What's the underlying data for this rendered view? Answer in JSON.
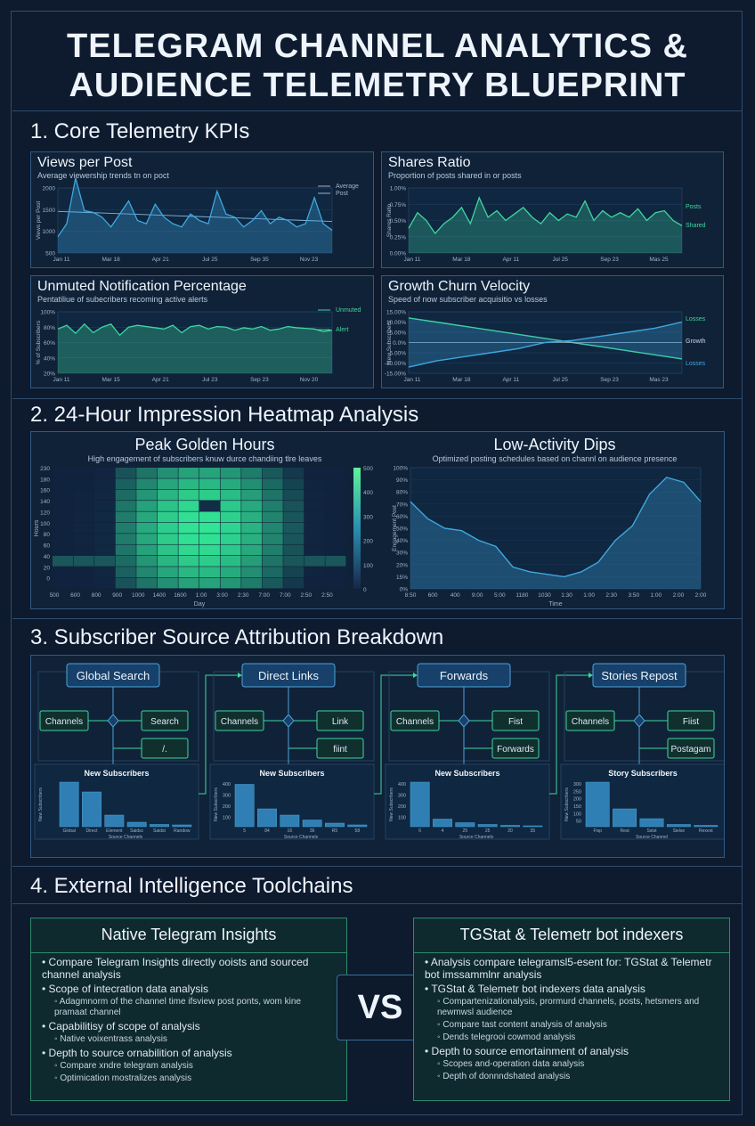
{
  "title": [
    "TELEGRAM CHANNEL ANALYTICS &",
    "AUDIENCE TELEMETRY BLUEPRINT"
  ],
  "sections": {
    "s1": "1. Core Telemetry KPIs",
    "s2": "2. 24-Hour Impression Heatmap Analysis",
    "s3": "3. Subscriber Source Attribution Breakdown",
    "s4": "4. External Intelligence Toolchains"
  },
  "kpis": {
    "views": {
      "title": "Views per Post",
      "subtitle": "Average viewership trends tn on poct",
      "legend": [
        "Average",
        "Post"
      ]
    },
    "shares": {
      "title": "Shares Ratio",
      "subtitle": "Proportion of posts shared in or posts",
      "legend": [
        "Posts",
        "Shared"
      ]
    },
    "unmuted": {
      "title": "Unmuted Notification Percentage",
      "subtitle": "Pentatiliue of subecribers recoming active alerts",
      "legend": [
        "Unmuted",
        "Alert"
      ]
    },
    "churn": {
      "title": "Growth Churn Velocity",
      "subtitle": "Speed of now subscriber acquisitio vs losses",
      "legend": [
        "Losses",
        "Growth",
        "Losses"
      ]
    }
  },
  "heatmap": {
    "peak_title": "Peak Golden Hours",
    "peak_sub": "High engagement of subscribers knuw durce chandiing tlre leaves",
    "peak_xlabel": "Day",
    "peak_ylabel": "Hours",
    "low_title": "Low-Activity Dips",
    "low_sub": "Optimized posting schedules based on channl on audience presence",
    "low_xlabel": "Time",
    "low_ylabel": "Engagement Post"
  },
  "attribution": [
    {
      "header": "Global Search",
      "left": "Channels",
      "right1": "Search",
      "right2": "/.",
      "chart_title": "New Subscribers",
      "xlabel": "Source Channels",
      "ylabel": "New Subscribers",
      "cats": [
        "Global",
        "Direct",
        "Element",
        "Saidsc",
        "Saidst",
        "Randow"
      ],
      "vals": [
        100,
        78,
        26,
        10,
        5,
        4
      ],
      "yticks": []
    },
    {
      "header": "Direct Links",
      "left": "Channels",
      "right1": "Link",
      "right2": "fiint",
      "chart_title": "New Subscribers",
      "xlabel": "Source Channels",
      "ylabel": "New Subscribers",
      "cats": [
        "5",
        "84",
        "16",
        "36",
        "R5",
        "58"
      ],
      "vals": [
        95,
        40,
        26,
        15,
        8,
        4
      ],
      "yticks": [
        "400",
        "300",
        "200",
        "100"
      ]
    },
    {
      "header": "Forwards",
      "left": "Channels",
      "right1": "Fist",
      "right2": "Forwards",
      "chart_title": "New Subscribers",
      "xlabel": "Source Channels",
      "ylabel": "New Subscribers",
      "cats": [
        "6",
        "4",
        "25",
        "25",
        "20",
        "35"
      ],
      "vals": [
        100,
        17,
        9,
        5,
        3,
        2
      ],
      "yticks": [
        "400",
        "300",
        "200",
        "100"
      ]
    },
    {
      "header": "Stories Repost",
      "left": "Channels",
      "right1": "Fiist",
      "right2": "Postagam",
      "chart_title": "Story Subscribers",
      "xlabel": "Source Channel",
      "ylabel": "New Subscribers",
      "cats": [
        "Fisp",
        "Rest",
        "Sstst",
        "Sielse",
        "Rexest"
      ],
      "vals": [
        100,
        40,
        18,
        5,
        3
      ],
      "yticks": [
        "300",
        "250",
        "200",
        "150",
        "100",
        "50"
      ]
    }
  ],
  "tools": {
    "left": {
      "title": "Native Telegram Insights",
      "items": [
        {
          "text": "Compare Telegram Insights directly ooists and sourced channel analysis",
          "sub": false
        },
        {
          "text": "Scope of intecration data analysis",
          "sub": false
        },
        {
          "text": "Adagmnorm of the channel time ifsview post ponts, wom kine pramaat channel",
          "sub": true
        },
        {
          "text": "Capabilitisy of scope of analysis",
          "sub": false
        },
        {
          "text": "Native voixentrass analysis",
          "sub": true
        },
        {
          "text": "Depth to source ornabilition of analysis",
          "sub": false
        },
        {
          "text": "Compare xndre telegram analysis",
          "sub": true
        },
        {
          "text": "Optimication mostralizes analysis",
          "sub": true
        }
      ]
    },
    "vs": "VS",
    "right": {
      "title": "TGStat & Telemetr bot indexers",
      "items": [
        {
          "text": "Analysis compare telegramsl5-esent for: TGStat & Telemetr bot imssammlnr analysis",
          "sub": false
        },
        {
          "text": "TGStat & Telemetr bot indexers data analysis",
          "sub": false
        },
        {
          "text": "Compartenizationalysis, prormurd channels, posts, hetsmers and newmwsl audience",
          "sub": true
        },
        {
          "text": "Compare tast content analysis of analysis",
          "sub": true
        },
        {
          "text": "Dends telegrooi cowmod analysis",
          "sub": true
        },
        {
          "text": "Depth to source emortainment of analysis",
          "sub": false
        },
        {
          "text": "Scopes and-operation data analysis",
          "sub": true
        },
        {
          "text": "Depth of donnndshated analysis",
          "sub": true
        }
      ]
    }
  },
  "chart_data": [
    {
      "type": "line",
      "title": "Views per Post",
      "ylabel": "Views per Post",
      "ylim": [
        0,
        2000
      ],
      "yticks": [
        "2000",
        "1500",
        "1000",
        "500"
      ],
      "xticks": [
        "Jan 11",
        "Mar 18",
        "Apr 21",
        "Jul 25",
        "Sep 35",
        "Nov 23"
      ],
      "series": [
        {
          "name": "Average",
          "values": [
            1280,
            1270,
            1260,
            1250,
            1240,
            1230,
            1220,
            1210,
            1200,
            1190,
            1180,
            1170,
            1160,
            1150,
            1140,
            1130,
            1120,
            1110,
            1100,
            1090,
            1080,
            1070,
            1060,
            1050,
            1040,
            1030,
            1020,
            1010,
            1000,
            990,
            980,
            970
          ]
        },
        {
          "name": "Post",
          "values": [
            500,
            900,
            2300,
            1300,
            1250,
            1100,
            800,
            1200,
            1600,
            1000,
            900,
            1500,
            1100,
            900,
            800,
            1200,
            1000,
            900,
            1900,
            1200,
            1100,
            800,
            1000,
            1300,
            900,
            1100,
            1000,
            800,
            900,
            1700,
            900,
            700
          ]
        }
      ]
    },
    {
      "type": "line",
      "title": "Shares Ratio",
      "ylabel": "Shares Ratio",
      "ylim": [
        0,
        1
      ],
      "yticks": [
        "1.00%",
        "0.75%",
        "0.50%",
        "0.25%",
        "0.00%"
      ],
      "xticks": [
        "Jan 11",
        "Mar 18",
        "Apr 11",
        "Jul 25",
        "Sep 23",
        "Mas 25"
      ],
      "series": [
        {
          "name": "Posts",
          "values": [
            0.38,
            0.62,
            0.5,
            0.3,
            0.45,
            0.55,
            0.7,
            0.45,
            0.85,
            0.55,
            0.65,
            0.5,
            0.6,
            0.7,
            0.55,
            0.45,
            0.62,
            0.5,
            0.6,
            0.55,
            0.8,
            0.5,
            0.65,
            0.55,
            0.62,
            0.55,
            0.68,
            0.5,
            0.62,
            0.65,
            0.5,
            0.42
          ]
        },
        {
          "name": "Shared",
          "values": []
        }
      ]
    },
    {
      "type": "area",
      "title": "Unmuted Notification Percentage",
      "ylabel": "% of Subscribers",
      "ylim": [
        0,
        100
      ],
      "yticks": [
        "100%",
        "80%",
        "60%",
        "40%",
        "20%"
      ],
      "xticks": [
        "Jan 11",
        "Mar 15",
        "Apr 21",
        "Jul 23",
        "Sep 23",
        "Nov 20"
      ],
      "series": [
        {
          "name": "Unmuted",
          "values": [
            72,
            78,
            65,
            80,
            66,
            75,
            80,
            62,
            75,
            78,
            76,
            74,
            72,
            78,
            66,
            76,
            78,
            72,
            76,
            75,
            70,
            74,
            72,
            76,
            70,
            72,
            76,
            74,
            73,
            72,
            68,
            70
          ]
        },
        {
          "name": "Alert",
          "values": []
        }
      ]
    },
    {
      "type": "line",
      "title": "Growth Churn Velocity",
      "ylabel": "New Subscribers",
      "ylim": [
        -15,
        15
      ],
      "yticks": [
        "15.00%",
        "10.00%",
        "5.00%",
        "0.0%",
        "-5.00%",
        "-10.00%",
        "-15.00%"
      ],
      "xticks": [
        "Jan 11",
        "Mar 18",
        "Apr 11",
        "Jul 25",
        "Sep 23",
        "Mas 23"
      ],
      "series": [
        {
          "name": "Losses",
          "values": [
            12,
            10,
            8,
            6,
            4,
            2,
            0,
            -2,
            -4,
            -6,
            -8
          ]
        },
        {
          "name": "Growth",
          "values": [
            0,
            0,
            0,
            0,
            0,
            0,
            0,
            0,
            0,
            0,
            0
          ]
        },
        {
          "name": "Losses",
          "values": [
            -12,
            -9,
            -7,
            -5,
            -3,
            0,
            1,
            3,
            5,
            7,
            10
          ]
        }
      ]
    },
    {
      "type": "heatmap",
      "title": "Peak Golden Hours",
      "xlabel": "Day",
      "ylabel": "Hours",
      "yticks": [
        "230",
        "180",
        "160",
        "140",
        "120",
        "100",
        "80",
        "60",
        "40",
        "20",
        "0"
      ],
      "xticks": [
        "500",
        "600",
        "800",
        "900",
        "1000",
        "1400",
        "1600",
        "1:00",
        "3:00",
        "2:30",
        "7:00",
        "7:00",
        "2:50",
        "2:50"
      ],
      "colorbar": [
        "500",
        "400",
        "300",
        "200",
        "100",
        "0"
      ]
    },
    {
      "type": "area",
      "title": "Low-Activity Dips",
      "xlabel": "Time",
      "ylabel": "Engagement Post",
      "ylim": [
        0,
        100
      ],
      "yticks": [
        "100%",
        "90%",
        "80%",
        "70%",
        "60%",
        "50%",
        "40%",
        "30%",
        "20%",
        "15%",
        "0%"
      ],
      "xticks": [
        "8:50",
        "600",
        "400",
        "9:00",
        "5:00",
        "1180",
        "1030",
        "1:30",
        "1:00",
        "2:30",
        "3:50",
        "1:00",
        "2:00",
        "2:00"
      ],
      "values": [
        72,
        58,
        50,
        48,
        40,
        35,
        18,
        14,
        12,
        10,
        14,
        22,
        40,
        52,
        78,
        92,
        88,
        72
      ]
    }
  ]
}
